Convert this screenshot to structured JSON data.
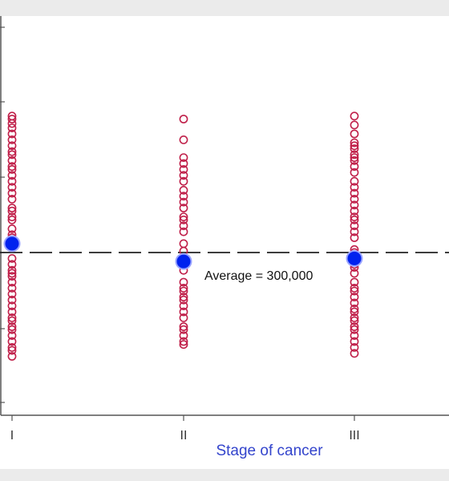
{
  "chart_data": {
    "type": "scatter",
    "title": "",
    "xlabel": "Stage of cancer",
    "ylabel": "",
    "categories": [
      "I",
      "II",
      "III"
    ],
    "ylim": [
      0,
      100
    ],
    "grid": false,
    "reference_line": {
      "value": 50,
      "style": "dashed",
      "label": "Average = 300,000"
    },
    "colors": {
      "points": "#c0204a",
      "means": "#0022ee",
      "mean_halo": "#9aa4ff",
      "xlabel": "#3344cc",
      "axis": "#555555",
      "reference": "#222222",
      "panel": "#ffffff",
      "background": "#ebebeb"
    },
    "series": [
      {
        "name": "",
        "marker": "hollow-circle",
        "points": [
          {
            "cat": "I",
            "y": 96
          },
          {
            "cat": "I",
            "y": 95
          },
          {
            "cat": "I",
            "y": 93.5
          },
          {
            "cat": "I",
            "y": 92
          },
          {
            "cat": "I",
            "y": 90
          },
          {
            "cat": "I",
            "y": 88
          },
          {
            "cat": "I",
            "y": 86
          },
          {
            "cat": "I",
            "y": 84
          },
          {
            "cat": "I",
            "y": 83
          },
          {
            "cat": "I",
            "y": 81
          },
          {
            "cat": "I",
            "y": 79
          },
          {
            "cat": "I",
            "y": 78
          },
          {
            "cat": "I",
            "y": 76
          },
          {
            "cat": "I",
            "y": 74
          },
          {
            "cat": "I",
            "y": 72
          },
          {
            "cat": "I",
            "y": 70
          },
          {
            "cat": "I",
            "y": 68
          },
          {
            "cat": "I",
            "y": 65
          },
          {
            "cat": "I",
            "y": 64
          },
          {
            "cat": "I",
            "y": 62
          },
          {
            "cat": "I",
            "y": 61
          },
          {
            "cat": "I",
            "y": 58
          },
          {
            "cat": "I",
            "y": 56
          },
          {
            "cat": "I",
            "y": 55
          },
          {
            "cat": "I",
            "y": 53
          },
          {
            "cat": "I",
            "y": 48
          },
          {
            "cat": "I",
            "y": 46
          },
          {
            "cat": "I",
            "y": 44
          },
          {
            "cat": "I",
            "y": 43
          },
          {
            "cat": "I",
            "y": 42
          },
          {
            "cat": "I",
            "y": 40
          },
          {
            "cat": "I",
            "y": 38
          },
          {
            "cat": "I",
            "y": 36
          },
          {
            "cat": "I",
            "y": 34
          },
          {
            "cat": "I",
            "y": 32
          },
          {
            "cat": "I",
            "y": 30
          },
          {
            "cat": "I",
            "y": 28
          },
          {
            "cat": "I",
            "y": 27
          },
          {
            "cat": "I",
            "y": 25
          },
          {
            "cat": "I",
            "y": 24
          },
          {
            "cat": "I",
            "y": 22
          },
          {
            "cat": "I",
            "y": 20
          },
          {
            "cat": "I",
            "y": 18
          },
          {
            "cat": "I",
            "y": 17
          },
          {
            "cat": "I",
            "y": 15
          },
          {
            "cat": "II",
            "y": 95
          },
          {
            "cat": "II",
            "y": 88
          },
          {
            "cat": "II",
            "y": 82
          },
          {
            "cat": "II",
            "y": 80
          },
          {
            "cat": "II",
            "y": 78
          },
          {
            "cat": "II",
            "y": 76
          },
          {
            "cat": "II",
            "y": 74
          },
          {
            "cat": "II",
            "y": 71
          },
          {
            "cat": "II",
            "y": 69
          },
          {
            "cat": "II",
            "y": 67
          },
          {
            "cat": "II",
            "y": 65
          },
          {
            "cat": "II",
            "y": 62
          },
          {
            "cat": "II",
            "y": 61
          },
          {
            "cat": "II",
            "y": 59
          },
          {
            "cat": "II",
            "y": 57
          },
          {
            "cat": "II",
            "y": 53
          },
          {
            "cat": "II",
            "y": 50.5
          },
          {
            "cat": "II",
            "y": 46
          },
          {
            "cat": "II",
            "y": 44
          },
          {
            "cat": "II",
            "y": 40
          },
          {
            "cat": "II",
            "y": 38
          },
          {
            "cat": "II",
            "y": 37
          },
          {
            "cat": "II",
            "y": 35
          },
          {
            "cat": "II",
            "y": 34
          },
          {
            "cat": "II",
            "y": 32
          },
          {
            "cat": "II",
            "y": 30
          },
          {
            "cat": "II",
            "y": 28
          },
          {
            "cat": "II",
            "y": 25
          },
          {
            "cat": "II",
            "y": 24
          },
          {
            "cat": "II",
            "y": 22
          },
          {
            "cat": "II",
            "y": 20
          },
          {
            "cat": "II",
            "y": 19
          },
          {
            "cat": "III",
            "y": 96
          },
          {
            "cat": "III",
            "y": 93
          },
          {
            "cat": "III",
            "y": 90
          },
          {
            "cat": "III",
            "y": 87
          },
          {
            "cat": "III",
            "y": 86
          },
          {
            "cat": "III",
            "y": 85
          },
          {
            "cat": "III",
            "y": 83
          },
          {
            "cat": "III",
            "y": 82
          },
          {
            "cat": "III",
            "y": 81
          },
          {
            "cat": "III",
            "y": 79
          },
          {
            "cat": "III",
            "y": 77
          },
          {
            "cat": "III",
            "y": 74
          },
          {
            "cat": "III",
            "y": 72
          },
          {
            "cat": "III",
            "y": 70
          },
          {
            "cat": "III",
            "y": 68
          },
          {
            "cat": "III",
            "y": 66
          },
          {
            "cat": "III",
            "y": 64
          },
          {
            "cat": "III",
            "y": 62
          },
          {
            "cat": "III",
            "y": 61
          },
          {
            "cat": "III",
            "y": 59
          },
          {
            "cat": "III",
            "y": 57
          },
          {
            "cat": "III",
            "y": 55
          },
          {
            "cat": "III",
            "y": 51
          },
          {
            "cat": "III",
            "y": 50
          },
          {
            "cat": "III",
            "y": 46
          },
          {
            "cat": "III",
            "y": 45
          },
          {
            "cat": "III",
            "y": 43
          },
          {
            "cat": "III",
            "y": 40
          },
          {
            "cat": "III",
            "y": 38
          },
          {
            "cat": "III",
            "y": 37
          },
          {
            "cat": "III",
            "y": 35
          },
          {
            "cat": "III",
            "y": 33
          },
          {
            "cat": "III",
            "y": 31
          },
          {
            "cat": "III",
            "y": 30
          },
          {
            "cat": "III",
            "y": 28
          },
          {
            "cat": "III",
            "y": 27
          },
          {
            "cat": "III",
            "y": 25
          },
          {
            "cat": "III",
            "y": 24
          },
          {
            "cat": "III",
            "y": 22
          },
          {
            "cat": "III",
            "y": 20
          },
          {
            "cat": "III",
            "y": 18
          },
          {
            "cat": "III",
            "y": 16
          }
        ]
      },
      {
        "name": "",
        "marker": "filled-circle",
        "points": [
          {
            "cat": "I",
            "y": 53
          },
          {
            "cat": "II",
            "y": 47
          },
          {
            "cat": "III",
            "y": 48
          }
        ]
      }
    ]
  }
}
